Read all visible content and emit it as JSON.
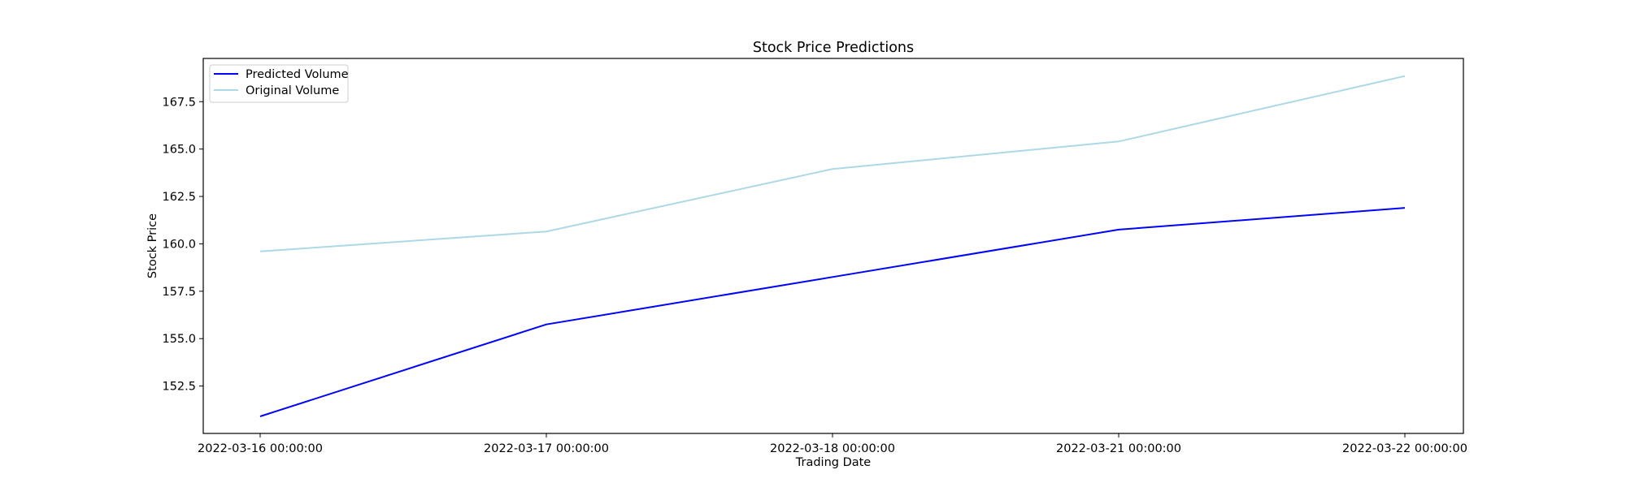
{
  "chart_data": {
    "type": "line",
    "title": "Stock Price Predictions",
    "xlabel": "Trading Date",
    "ylabel": "Stock Price",
    "categories": [
      "2022-03-16 00:00:00",
      "2022-03-17 00:00:00",
      "2022-03-18 00:00:00",
      "2022-03-21 00:00:00",
      "2022-03-22 00:00:00"
    ],
    "series": [
      {
        "name": "Predicted Volume",
        "color": "#0000ff",
        "values": [
          150.9,
          155.75,
          158.25,
          160.75,
          161.9
        ]
      },
      {
        "name": "Original Volume",
        "color": "#add8e6",
        "values": [
          159.6,
          160.65,
          163.95,
          165.4,
          168.85
        ]
      }
    ],
    "yticks": [
      "152.5",
      "155.0",
      "157.5",
      "160.0",
      "162.5",
      "165.0",
      "167.5"
    ],
    "ylim": [
      150.0,
      169.78
    ],
    "grid": false,
    "legend_position": "upper-left"
  }
}
